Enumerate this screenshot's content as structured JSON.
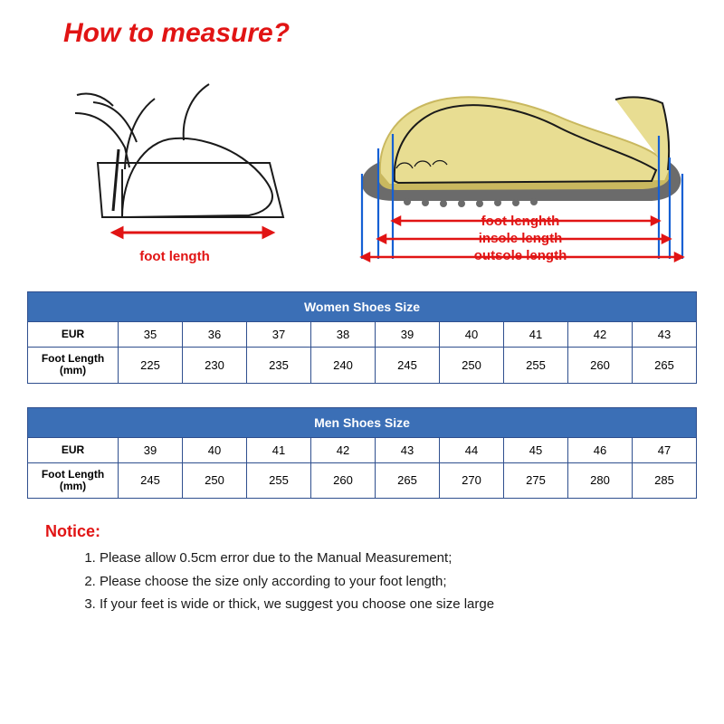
{
  "title": "How to measure?",
  "colors": {
    "accent_red": "#e11414",
    "table_header_bg": "#3b6fb6",
    "table_border": "#2f4f8e",
    "arrow_blue": "#1560d4",
    "diagram_yellow": "#e8dd92",
    "diagram_dark_yellow": "#c9b85f",
    "diagram_sole": "#6b6b6b",
    "diagram_line": "#1a1a1a"
  },
  "diagram_left": {
    "caption": "foot length"
  },
  "diagram_right": {
    "labels": [
      "foot lenghth",
      "insole length",
      "outsole length"
    ]
  },
  "tables": {
    "women": {
      "title": "Women Shoes Size",
      "columns": [
        "EUR",
        "Foot Length (mm)"
      ],
      "rows": [
        [
          35,
          36,
          37,
          38,
          39,
          40,
          41,
          42,
          43
        ],
        [
          225,
          230,
          235,
          240,
          245,
          250,
          255,
          260,
          265
        ]
      ]
    },
    "men": {
      "title": "Men Shoes Size",
      "columns": [
        "EUR",
        "Foot Length (mm)"
      ],
      "rows": [
        [
          39,
          40,
          41,
          42,
          43,
          44,
          45,
          46,
          47
        ],
        [
          245,
          250,
          255,
          260,
          265,
          270,
          275,
          280,
          285
        ]
      ]
    },
    "col_widths": {
      "label": 100,
      "data": 71
    }
  },
  "notice": {
    "label": "Notice:",
    "items": [
      "Please allow 0.5cm error due to the Manual Measurement;",
      "Please choose the size only according to your foot length;",
      "If your feet is wide or thick, we suggest you choose one size large"
    ]
  },
  "fonts": {
    "title": 30,
    "table_header": 14,
    "table_cell": 13,
    "notice_label": 18,
    "notice_item": 15,
    "diagram_label": 15
  }
}
